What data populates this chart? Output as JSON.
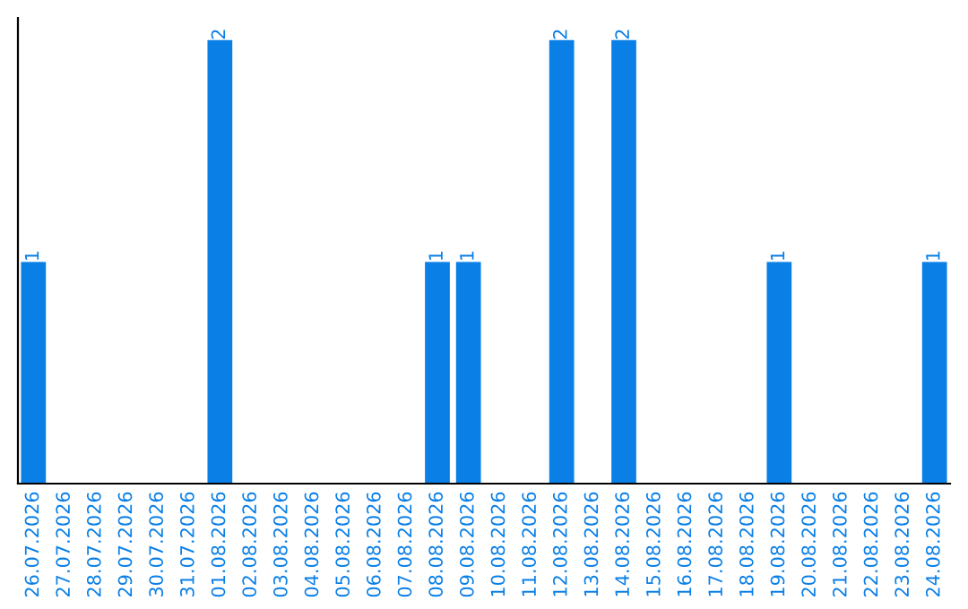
{
  "chart_data": {
    "type": "bar",
    "categories": [
      "26.07.2026",
      "27.07.2026",
      "28.07.2026",
      "29.07.2026",
      "30.07.2026",
      "31.07.2026",
      "01.08.2026",
      "02.08.2026",
      "03.08.2026",
      "04.08.2026",
      "05.08.2026",
      "06.08.2026",
      "07.08.2026",
      "08.08.2026",
      "09.08.2026",
      "10.08.2026",
      "11.08.2026",
      "12.08.2026",
      "13.08.2026",
      "14.08.2026",
      "15.08.2026",
      "16.08.2026",
      "17.08.2026",
      "18.08.2026",
      "19.08.2026",
      "20.08.2026",
      "21.08.2026",
      "22.08.2026",
      "23.08.2026",
      "24.08.2026"
    ],
    "values": [
      1,
      0,
      0,
      0,
      0,
      0,
      2,
      0,
      0,
      0,
      0,
      0,
      0,
      1,
      1,
      0,
      0,
      2,
      0,
      2,
      0,
      0,
      0,
      0,
      1,
      0,
      0,
      0,
      0,
      1
    ],
    "color": "#0a7fe6",
    "value_labels": [
      "1",
      null,
      null,
      null,
      null,
      null,
      "2",
      null,
      null,
      null,
      null,
      null,
      null,
      "1",
      "1",
      null,
      null,
      "2",
      null,
      "2",
      null,
      null,
      null,
      null,
      "1",
      null,
      null,
      null,
      null,
      "1"
    ],
    "tick_labels": "x",
    "grid": false,
    "legend": false
  }
}
